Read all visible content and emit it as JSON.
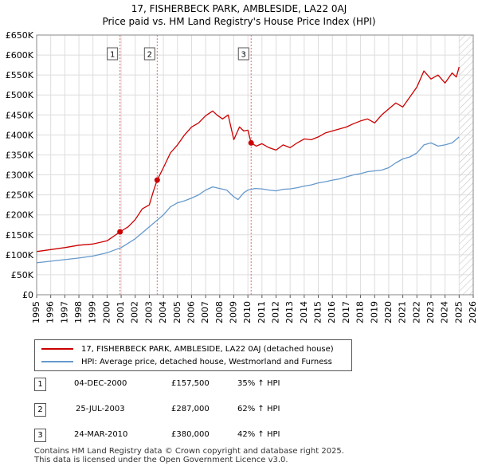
{
  "title": {
    "line1": "17, FISHERBECK PARK, AMBLESIDE, LA22 0AJ",
    "line2": "Price paid vs. HM Land Registry's House Price Index (HPI)"
  },
  "legend": {
    "items": [
      {
        "label": "17, FISHERBECK PARK, AMBLESIDE, LA22 0AJ (detached house)",
        "color": "#cc0000"
      },
      {
        "label": "HPI: Average price, detached house, Westmorland and Furness",
        "color": "#6699cc"
      }
    ]
  },
  "sales": [
    {
      "num": "1",
      "date": "04-DEC-2000",
      "price": "£157,500",
      "hpi": "35% ↑ HPI"
    },
    {
      "num": "2",
      "date": "25-JUL-2003",
      "price": "£287,000",
      "hpi": "62% ↑ HPI"
    },
    {
      "num": "3",
      "date": "24-MAR-2010",
      "price": "£380,000",
      "hpi": "42% ↑ HPI"
    }
  ],
  "footer": {
    "line1": "Contains HM Land Registry data © Crown copyright and database right 2025.",
    "line2": "This data is licensed under the Open Government Licence v3.0."
  },
  "chart_data": {
    "type": "line",
    "title": "Price paid vs. HM Land Registry's House Price Index (HPI)",
    "xlabel": "",
    "ylabel": "",
    "xlim": [
      1995,
      2026
    ],
    "ylim": [
      0,
      650000
    ],
    "y_ticks": [
      0,
      50000,
      100000,
      150000,
      200000,
      250000,
      300000,
      350000,
      400000,
      450000,
      500000,
      550000,
      600000,
      650000
    ],
    "y_tick_labels": [
      "£0",
      "£50K",
      "£100K",
      "£150K",
      "£200K",
      "£250K",
      "£300K",
      "£350K",
      "£400K",
      "£450K",
      "£500K",
      "£550K",
      "£600K",
      "£650K"
    ],
    "x_ticks": [
      1995,
      1996,
      1997,
      1998,
      1999,
      2000,
      2001,
      2002,
      2003,
      2004,
      2005,
      2006,
      2007,
      2008,
      2009,
      2010,
      2011,
      2012,
      2013,
      2014,
      2015,
      2016,
      2017,
      2018,
      2019,
      2020,
      2021,
      2022,
      2023,
      2024,
      2025,
      2026
    ],
    "x_tick_labels": [
      "1995",
      "1996",
      "1997",
      "1998",
      "1999",
      "2000",
      "2001",
      "2002",
      "2003",
      "2004",
      "2005",
      "2006",
      "2007",
      "2008",
      "2009",
      "2010",
      "2011",
      "2012",
      "2013",
      "2014",
      "2015",
      "2016",
      "2017",
      "2018",
      "2019",
      "2020",
      "2021",
      "2022",
      "2023",
      "2024",
      "2025",
      "2026"
    ],
    "series": [
      {
        "name": "17, FISHERBECK PARK, AMBLESIDE, LA22 0AJ (detached house)",
        "color": "#cc0000",
        "x": [
          1995.0,
          1996.0,
          1997.0,
          1998.0,
          1999.0,
          2000.0,
          2000.92,
          2001.5,
          2002.0,
          2002.5,
          2003.0,
          2003.3,
          2003.56,
          2004.0,
          2004.5,
          2005.0,
          2005.5,
          2006.0,
          2006.5,
          2007.0,
          2007.5,
          2007.8,
          2008.2,
          2008.6,
          2009.0,
          2009.4,
          2009.7,
          2010.0,
          2010.23,
          2010.6,
          2011.0,
          2011.5,
          2012.0,
          2012.5,
          2013.0,
          2013.5,
          2014.0,
          2014.5,
          2015.0,
          2015.5,
          2016.0,
          2016.5,
          2017.0,
          2017.5,
          2018.0,
          2018.5,
          2019.0,
          2019.5,
          2020.0,
          2020.5,
          2021.0,
          2021.5,
          2022.0,
          2022.5,
          2023.0,
          2023.5,
          2024.0,
          2024.5,
          2024.8,
          2025.0
        ],
        "values": [
          108000,
          113000,
          118000,
          124000,
          127000,
          135000,
          157500,
          170000,
          188000,
          215000,
          225000,
          260000,
          287000,
          318000,
          355000,
          375000,
          400000,
          420000,
          430000,
          448000,
          460000,
          450000,
          440000,
          450000,
          388000,
          420000,
          410000,
          412000,
          380000,
          372000,
          378000,
          368000,
          362000,
          375000,
          368000,
          380000,
          390000,
          388000,
          395000,
          405000,
          410000,
          415000,
          420000,
          428000,
          435000,
          440000,
          430000,
          450000,
          465000,
          480000,
          470000,
          495000,
          520000,
          560000,
          540000,
          550000,
          530000,
          555000,
          545000,
          570000
        ]
      },
      {
        "name": "HPI: Average price, detached house, Westmorland and Furness",
        "color": "#6699cc",
        "x": [
          1995.0,
          1996.0,
          1997.0,
          1998.0,
          1999.0,
          2000.0,
          2001.0,
          2002.0,
          2003.0,
          2004.0,
          2004.5,
          2005.0,
          2005.5,
          2006.0,
          2006.5,
          2007.0,
          2007.5,
          2008.0,
          2008.5,
          2009.0,
          2009.3,
          2009.7,
          2010.0,
          2010.5,
          2011.0,
          2011.5,
          2012.0,
          2012.5,
          2013.0,
          2013.5,
          2014.0,
          2014.5,
          2015.0,
          2015.5,
          2016.0,
          2016.5,
          2017.0,
          2017.5,
          2018.0,
          2018.5,
          2019.0,
          2019.5,
          2020.0,
          2020.5,
          2021.0,
          2021.5,
          2022.0,
          2022.5,
          2023.0,
          2023.5,
          2024.0,
          2024.5,
          2025.0
        ],
        "values": [
          80000,
          84000,
          88000,
          92000,
          97000,
          105000,
          118000,
          140000,
          170000,
          200000,
          220000,
          230000,
          235000,
          242000,
          250000,
          262000,
          270000,
          266000,
          262000,
          245000,
          238000,
          255000,
          262000,
          266000,
          265000,
          262000,
          260000,
          264000,
          265000,
          268000,
          272000,
          275000,
          280000,
          283000,
          287000,
          290000,
          295000,
          300000,
          303000,
          308000,
          310000,
          312000,
          318000,
          330000,
          340000,
          345000,
          355000,
          375000,
          380000,
          372000,
          375000,
          380000,
          395000
        ]
      }
    ],
    "sale_points": [
      {
        "label": "1",
        "x": 2000.92,
        "value": 157500
      },
      {
        "label": "2",
        "x": 2003.56,
        "value": 287000
      },
      {
        "label": "3",
        "x": 2010.23,
        "value": 380000
      }
    ],
    "projection_start": 2025.0,
    "grid": true
  }
}
